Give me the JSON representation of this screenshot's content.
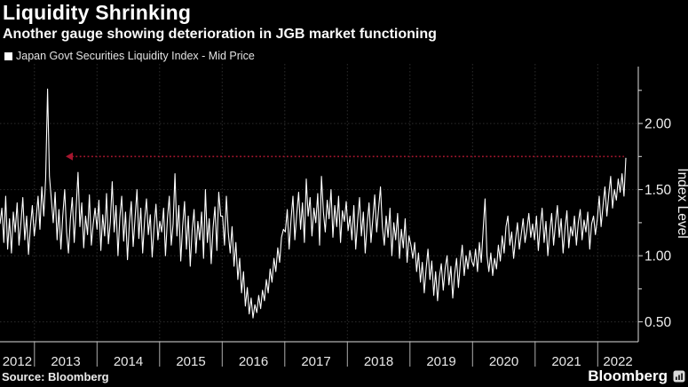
{
  "header": {
    "title": "Liquidity Shrinking",
    "subtitle": "Another gauge showing deterioration in JGB market functioning"
  },
  "legend": {
    "swatch_icon": "white-square-swatch",
    "swatch_color": "#ffffff",
    "label": "Japan Govt Securities Liquidity Index - Mid Price"
  },
  "footer": {
    "source": "Source: Bloomberg",
    "brand": "Bloomberg",
    "brand_icon": "bloomberg-terminal-icon"
  },
  "colors": {
    "background": "#000000",
    "line": "#ffffff",
    "annotation_red": "#a5162e",
    "grid": "#2d2d2d",
    "axis_text": "#f0f0f0"
  },
  "chart_data": {
    "type": "line",
    "title": "Liquidity Shrinking",
    "subtitle": "Another gauge showing deterioration in JGB market functioning",
    "ylabel": "Index Level",
    "xlabel": "",
    "ylim": [
      0.35,
      2.45
    ],
    "xlim": [
      2012.45,
      2022.45
    ],
    "grid": "dotted major gridlines, dark gray on black",
    "legend_position": "top-left",
    "y_ticks": [
      {
        "value": 0.5,
        "label": "0.50"
      },
      {
        "value": 1.0,
        "label": "1.00"
      },
      {
        "value": 1.5,
        "label": "1.50"
      },
      {
        "value": 2.0,
        "label": "2.00"
      }
    ],
    "y_minor_ticks": [
      0.75,
      1.25,
      1.75,
      2.25
    ],
    "x_labels": [
      "2012",
      "2013",
      "2014",
      "2015",
      "2016",
      "2017",
      "2018",
      "2019",
      "2020",
      "2021",
      "2022"
    ],
    "x_year_boundaries": [
      2013,
      2014,
      2015,
      2016,
      2017,
      2018,
      2019,
      2020,
      2021,
      2022
    ],
    "annotation": {
      "type": "dotted-arrow",
      "level": 1.75,
      "year_from": 2022.42,
      "year_to": 2013.5,
      "color": "#a5162e"
    },
    "series": [
      {
        "name": "Japan Govt Securities Liquidity Index - Mid Price",
        "color": "#ffffff",
        "x_start": 2012.45,
        "x_end": 2022.45,
        "values": [
          1.24,
          1.36,
          1.1,
          1.45,
          1.05,
          1.28,
          1.02,
          1.33,
          1.18,
          1.4,
          1.08,
          1.25,
          1.44,
          1.12,
          1.3,
          1.01,
          1.22,
          1.38,
          1.15,
          1.28,
          1.45,
          1.2,
          1.52,
          1.3,
          1.58,
          2.26,
          1.6,
          1.42,
          1.25,
          1.48,
          1.12,
          1.35,
          1.05,
          1.3,
          1.5,
          1.18,
          1.02,
          1.28,
          1.44,
          1.1,
          1.35,
          1.63,
          1.22,
          1.4,
          1.06,
          1.3,
          1.16,
          1.46,
          1.08,
          1.24,
          1.36,
          1.2,
          1.42,
          1.04,
          1.31,
          1.15,
          1.47,
          1.09,
          1.26,
          1.56,
          1.18,
          1.38,
          1.0,
          1.29,
          1.45,
          1.11,
          1.33,
          0.97,
          1.24,
          1.41,
          1.07,
          1.28,
          1.5,
          1.13,
          1.36,
          1.02,
          1.27,
          1.43,
          1.16,
          1.31,
          0.99,
          1.22,
          1.39,
          1.12,
          1.26,
          1.18,
          1.36,
          1.0,
          1.28,
          1.45,
          1.08,
          1.24,
          1.62,
          1.15,
          1.38,
          0.96,
          1.22,
          1.41,
          1.05,
          1.3,
          0.92,
          1.19,
          1.35,
          1.02,
          1.26,
          1.12,
          1.33,
          0.98,
          1.5,
          1.1,
          1.28,
          0.94,
          1.21,
          1.37,
          1.04,
          1.48,
          1.3,
          1.3,
          1.08,
          1.45,
          1.18,
          1.02,
          1.22,
          0.92,
          1.1,
          0.82,
          0.98,
          0.72,
          0.88,
          0.62,
          0.76,
          0.56,
          0.68,
          0.53,
          0.63,
          0.57,
          0.7,
          0.6,
          0.74,
          0.66,
          0.82,
          0.72,
          0.9,
          0.8,
          0.98,
          0.88,
          1.06,
          0.95,
          1.14,
          1.2,
          1.18,
          1.35,
          1.05,
          1.28,
          1.45,
          1.12,
          1.32,
          1.48,
          1.2,
          1.4,
          1.1,
          1.58,
          1.3,
          1.44,
          1.15,
          1.36,
          1.25,
          1.47,
          1.08,
          1.6,
          1.33,
          1.18,
          1.42,
          1.28,
          1.5,
          1.14,
          1.38,
          1.22,
          1.45,
          1.1,
          1.34,
          1.26,
          1.41,
          1.19,
          1.3,
          1.12,
          1.38,
          1.05,
          1.27,
          1.44,
          1.15,
          1.33,
          1.02,
          1.24,
          1.4,
          1.1,
          1.28,
          1.46,
          1.18,
          1.35,
          1.52,
          1.22,
          1.08,
          1.3,
          1.14,
          1.36,
          1.0,
          1.25,
          1.12,
          1.32,
          0.98,
          1.2,
          1.06,
          1.28,
          0.95,
          1.15,
          1.08,
          0.98,
          1.1,
          0.88,
          1.02,
          0.8,
          0.95,
          0.72,
          0.9,
          1.05,
          0.82,
          0.96,
          0.7,
          0.88,
          0.66,
          0.84,
          0.94,
          0.74,
          0.9,
          1.0,
          0.78,
          0.92,
          0.68,
          0.86,
          0.98,
          0.76,
          0.95,
          1.08,
          0.85,
          1.0,
          0.9,
          1.04,
          0.96,
          0.92,
          1.05,
          0.88,
          1.1,
          0.95,
          1.2,
          1.43,
          1.0,
          0.88,
          1.02,
          0.85,
          0.98,
          0.9,
          1.08,
          0.96,
          1.15,
          1.02,
          1.22,
          1.3,
          1.08,
          1.18,
          0.98,
          1.12,
          1.25,
          1.05,
          1.16,
          1.28,
          1.1,
          1.2,
          1.32,
          1.14,
          1.24,
          1.12,
          1.3,
          1.04,
          1.22,
          1.36,
          1.1,
          1.26,
          1.0,
          1.18,
          1.32,
          1.08,
          1.24,
          1.38,
          1.14,
          1.28,
          1.02,
          1.2,
          1.34,
          1.06,
          1.22,
          1.15,
          1.3,
          1.08,
          1.25,
          1.35,
          1.12,
          1.27,
          1.18,
          1.33,
          1.05,
          1.24,
          1.3,
          1.16,
          1.28,
          1.45,
          1.22,
          1.38,
          1.52,
          1.3,
          1.46,
          1.6,
          1.36,
          1.5,
          1.42,
          1.58,
          1.48,
          1.62,
          1.45,
          1.74
        ]
      }
    ]
  }
}
